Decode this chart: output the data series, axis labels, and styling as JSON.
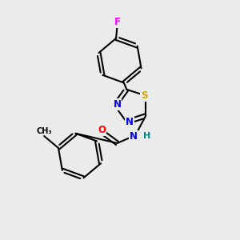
{
  "background_color": "#ebebeb",
  "bond_color": "#000000",
  "bond_width": 1.5,
  "atom_colors": {
    "F": "#ff00ff",
    "S": "#ccaa00",
    "N": "#0000ee",
    "O": "#ff0000",
    "H": "#008080",
    "C": "#000000"
  },
  "font_size_atom": 8.5,
  "fig_width": 3.0,
  "fig_height": 3.0,
  "dpi": 100,
  "xlim": [
    0,
    10
  ],
  "ylim": [
    0,
    10
  ]
}
